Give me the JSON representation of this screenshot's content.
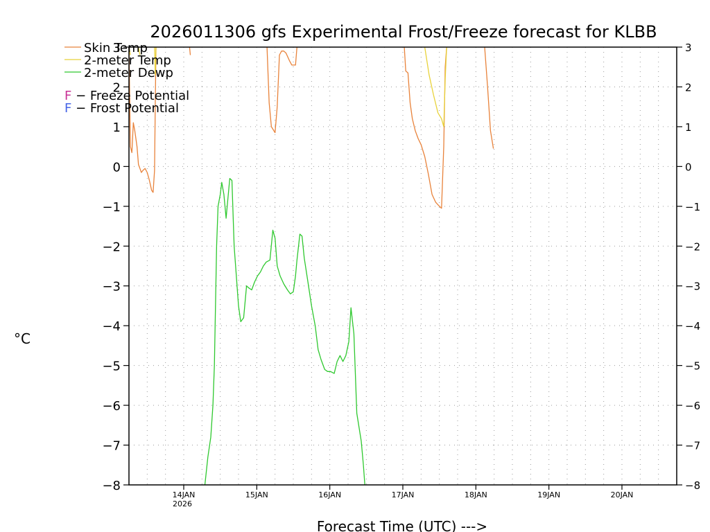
{
  "chart_data": {
    "type": "line",
    "title": "2026011306 gfs Experimental Frost/Freeze forecast for KLBB",
    "xlabel": "Forecast Time (UTC) --->",
    "ylabel": "°C",
    "ylim": [
      -8,
      3
    ],
    "y_ticks": [
      3,
      2,
      1,
      0,
      -1,
      -2,
      -3,
      -4,
      -5,
      -6,
      -7,
      -8
    ],
    "y_tick_labels": [
      "3",
      "2",
      "1",
      "0",
      "−1",
      "−2",
      "−3",
      "−4",
      "−5",
      "−6",
      "−7",
      "−8"
    ],
    "right_tick_labels": [
      "3",
      "2",
      "1",
      "0",
      "−1",
      "−2",
      "−3",
      "−4",
      "−5",
      "−6",
      "−7",
      "−8"
    ],
    "xlim_days_from_jan13_00z": [
      0.25,
      7.75
    ],
    "x_ticks": [
      {
        "day": 1,
        "label": "14JAN",
        "sub": "2026"
      },
      {
        "day": 2,
        "label": "15JAN",
        "sub": ""
      },
      {
        "day": 3,
        "label": "16JAN",
        "sub": ""
      },
      {
        "day": 4,
        "label": "17JAN",
        "sub": ""
      },
      {
        "day": 5,
        "label": "18JAN",
        "sub": ""
      },
      {
        "day": 6,
        "label": "19JAN",
        "sub": ""
      },
      {
        "day": 7,
        "label": "20JAN",
        "sub": ""
      }
    ],
    "grid": true,
    "legend": [
      {
        "label": "Skin Temp",
        "color": "#e8823a"
      },
      {
        "label": "2-meter Temp",
        "color": "#e8d23a"
      },
      {
        "label": "2-meter Dewp",
        "color": "#2ec82e"
      }
    ],
    "potential_legend": [
      {
        "letter": "F",
        "text": " − Freeze Potential",
        "color": "#c83296"
      },
      {
        "letter": "F",
        "text": " − Frost Potential",
        "color": "#4664e6"
      }
    ],
    "series": [
      {
        "name": "Skin Temp",
        "color": "#e8823a",
        "segments": [
          [
            [
              0.25,
              3.0
            ],
            [
              0.27,
              0.5
            ],
            [
              0.29,
              0.35
            ],
            [
              0.31,
              1.1
            ],
            [
              0.33,
              0.9
            ],
            [
              0.36,
              0.5
            ],
            [
              0.38,
              0.05
            ],
            [
              0.4,
              -0.05
            ],
            [
              0.42,
              -0.15
            ],
            [
              0.44,
              -0.1
            ],
            [
              0.47,
              -0.05
            ],
            [
              0.5,
              -0.15
            ],
            [
              0.53,
              -0.35
            ],
            [
              0.56,
              -0.6
            ],
            [
              0.58,
              -0.65
            ],
            [
              0.6,
              -0.1
            ],
            [
              0.61,
              1.5
            ],
            [
              0.62,
              3.0
            ]
          ],
          [
            [
              1.08,
              3.0
            ],
            [
              1.09,
              2.8
            ]
          ],
          [
            [
              2.14,
              3.0
            ],
            [
              2.17,
              1.6
            ],
            [
              2.2,
              1.0
            ],
            [
              2.25,
              0.85
            ],
            [
              2.28,
              1.5
            ],
            [
              2.31,
              2.8
            ],
            [
              2.34,
              2.9
            ],
            [
              2.37,
              2.9
            ],
            [
              2.4,
              2.85
            ],
            [
              2.45,
              2.65
            ],
            [
              2.48,
              2.55
            ],
            [
              2.53,
              2.55
            ],
            [
              2.55,
              3.0
            ]
          ],
          [
            [
              4.02,
              3.0
            ],
            [
              4.04,
              2.4
            ],
            [
              4.07,
              2.35
            ],
            [
              4.1,
              1.6
            ],
            [
              4.13,
              1.2
            ],
            [
              4.17,
              0.9
            ],
            [
              4.21,
              0.7
            ],
            [
              4.25,
              0.55
            ],
            [
              4.3,
              0.25
            ],
            [
              4.35,
              -0.2
            ],
            [
              4.4,
              -0.7
            ],
            [
              4.45,
              -0.9
            ],
            [
              4.5,
              -1.0
            ],
            [
              4.53,
              -1.05
            ],
            [
              4.56,
              0.5
            ],
            [
              4.58,
              2.5
            ],
            [
              4.6,
              3.0
            ]
          ],
          [
            [
              5.12,
              3.0
            ],
            [
              5.16,
              2.0
            ],
            [
              5.2,
              0.9
            ],
            [
              5.24,
              0.45
            ]
          ]
        ]
      },
      {
        "name": "2-meter Temp",
        "color": "#e8d23a",
        "segments": [
          [
            [
              0.25,
              3.0
            ],
            [
              0.27,
              2.8
            ]
          ],
          [
            [
              0.38,
              3.0
            ],
            [
              0.4,
              2.8
            ]
          ],
          [
            [
              0.6,
              3.0
            ],
            [
              0.61,
              2.3
            ],
            [
              0.62,
              3.0
            ]
          ],
          [
            [
              4.3,
              3.0
            ],
            [
              4.36,
              2.3
            ],
            [
              4.42,
              1.8
            ],
            [
              4.48,
              1.35
            ],
            [
              4.53,
              1.2
            ],
            [
              4.56,
              1.0
            ],
            [
              4.58,
              2.2
            ],
            [
              4.6,
              3.0
            ]
          ]
        ]
      },
      {
        "name": "2-meter Dewp",
        "color": "#2ec82e",
        "segments": [
          [
            [
              1.29,
              -8.0
            ],
            [
              1.33,
              -7.3
            ],
            [
              1.37,
              -6.8
            ],
            [
              1.4,
              -6.0
            ],
            [
              1.42,
              -5.0
            ],
            [
              1.45,
              -2.0
            ],
            [
              1.47,
              -1.0
            ],
            [
              1.5,
              -0.7
            ],
            [
              1.52,
              -0.4
            ],
            [
              1.55,
              -0.7
            ],
            [
              1.58,
              -1.3
            ],
            [
              1.6,
              -0.9
            ],
            [
              1.63,
              -0.3
            ],
            [
              1.66,
              -0.35
            ],
            [
              1.69,
              -2.0
            ],
            [
              1.75,
              -3.5
            ],
            [
              1.78,
              -3.9
            ],
            [
              1.82,
              -3.8
            ],
            [
              1.86,
              -3.0
            ],
            [
              1.89,
              -3.05
            ],
            [
              1.93,
              -3.1
            ],
            [
              1.97,
              -2.9
            ],
            [
              2.01,
              -2.75
            ],
            [
              2.05,
              -2.65
            ],
            [
              2.09,
              -2.5
            ],
            [
              2.13,
              -2.4
            ],
            [
              2.18,
              -2.35
            ],
            [
              2.22,
              -1.6
            ],
            [
              2.25,
              -1.8
            ],
            [
              2.28,
              -2.5
            ],
            [
              2.32,
              -2.75
            ],
            [
              2.37,
              -2.95
            ],
            [
              2.42,
              -3.1
            ],
            [
              2.46,
              -3.2
            ],
            [
              2.5,
              -3.15
            ],
            [
              2.53,
              -2.75
            ],
            [
              2.55,
              -2.35
            ],
            [
              2.59,
              -1.7
            ],
            [
              2.62,
              -1.75
            ],
            [
              2.65,
              -2.3
            ],
            [
              2.7,
              -2.9
            ],
            [
              2.75,
              -3.5
            ],
            [
              2.8,
              -4.0
            ],
            [
              2.84,
              -4.6
            ],
            [
              2.88,
              -4.85
            ],
            [
              2.93,
              -5.1
            ],
            [
              2.97,
              -5.15
            ],
            [
              3.01,
              -5.15
            ],
            [
              3.06,
              -5.2
            ],
            [
              3.1,
              -4.9
            ],
            [
              3.14,
              -4.75
            ],
            [
              3.18,
              -4.9
            ],
            [
              3.22,
              -4.75
            ],
            [
              3.26,
              -4.4
            ],
            [
              3.29,
              -3.55
            ],
            [
              3.33,
              -4.2
            ],
            [
              3.37,
              -6.2
            ],
            [
              3.43,
              -6.9
            ],
            [
              3.46,
              -7.5
            ],
            [
              3.48,
              -8.0
            ]
          ]
        ]
      }
    ]
  }
}
